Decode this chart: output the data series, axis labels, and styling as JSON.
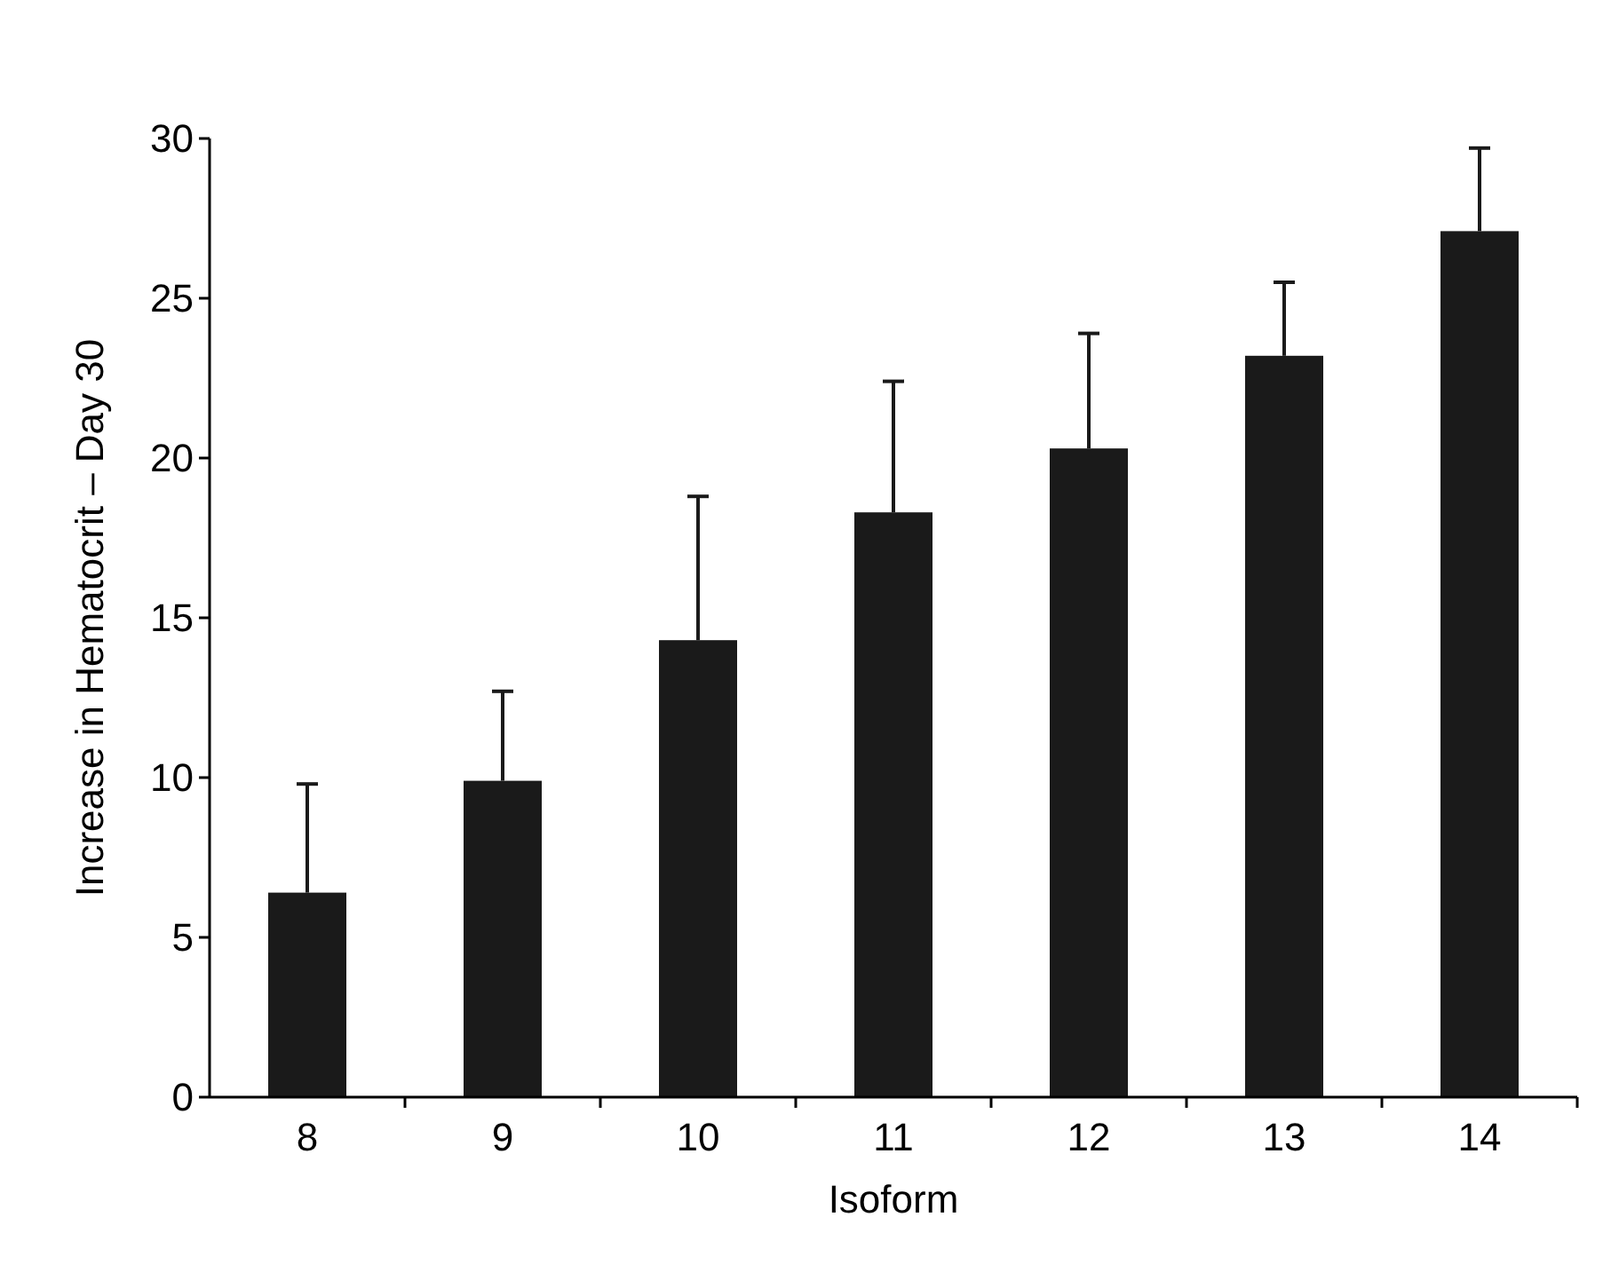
{
  "chart_data": {
    "type": "bar",
    "xlabel": "Isoform",
    "ylabel": "Increase in Hematocrit – Day 30",
    "categories": [
      "8",
      "9",
      "10",
      "11",
      "12",
      "13",
      "14"
    ],
    "values": [
      6.4,
      9.9,
      14.3,
      18.3,
      20.3,
      23.2,
      27.1
    ],
    "errors": [
      [
        6.4,
        9.8
      ],
      [
        9.9,
        12.7
      ],
      [
        14.3,
        18.8
      ],
      [
        18.3,
        22.4
      ],
      [
        20.3,
        23.9
      ],
      [
        23.2,
        25.5
      ],
      [
        27.1,
        29.7
      ]
    ],
    "color": "#1a1a1a",
    "ylim": [
      0,
      30
    ],
    "yticks": [
      0,
      5,
      10,
      15,
      20,
      25,
      30
    ],
    "grid": false
  }
}
